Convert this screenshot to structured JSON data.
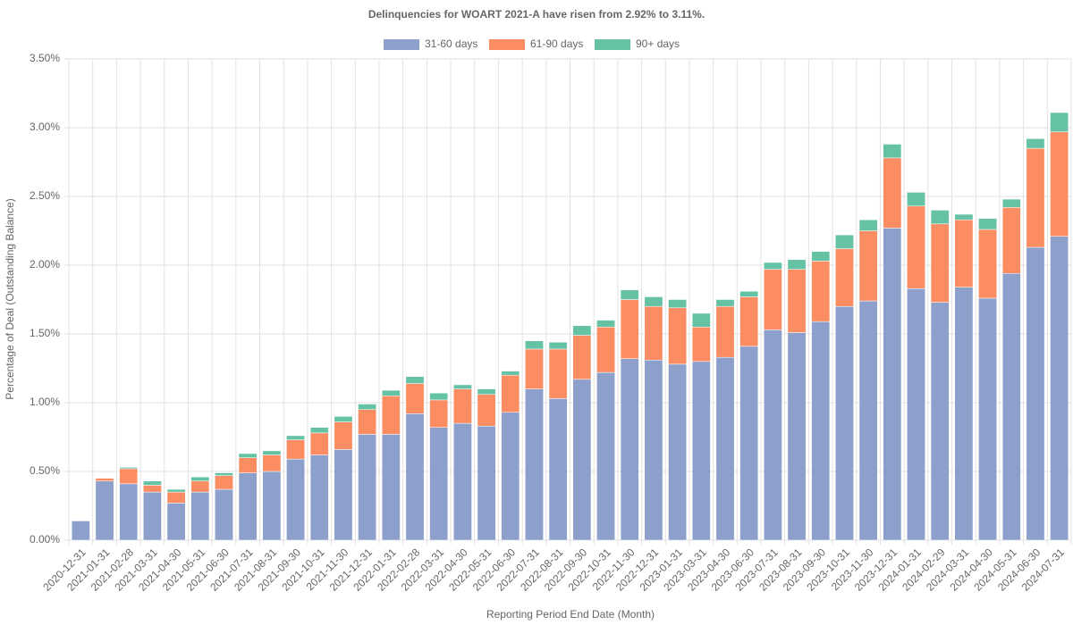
{
  "chart_data": {
    "type": "stacked_bar",
    "title": "Delinquencies for WOART 2021-A have risen from 2.92% to 3.11%.",
    "x_label": "Reporting Period End Date (Month)",
    "y_label": "Percentage of Deal (Outstanding Balance)",
    "categories": [
      "2020-12-31",
      "2021-01-31",
      "2021-02-28",
      "2021-03-31",
      "2021-04-30",
      "2021-05-31",
      "2021-06-30",
      "2021-07-31",
      "2021-08-31",
      "2021-09-30",
      "2021-10-31",
      "2021-11-30",
      "2021-12-31",
      "2022-01-31",
      "2022-02-28",
      "2022-03-31",
      "2022-04-30",
      "2022-05-31",
      "2022-06-30",
      "2022-07-31",
      "2022-08-31",
      "2022-09-30",
      "2022-10-31",
      "2022-11-30",
      "2022-12-31",
      "2023-01-31",
      "2023-03-31",
      "2023-04-30",
      "2023-06-30",
      "2023-07-31",
      "2023-08-31",
      "2023-09-30",
      "2023-10-31",
      "2023-11-30",
      "2023-12-31",
      "2024-01-31",
      "2024-02-29",
      "2024-03-31",
      "2024-04-30",
      "2024-05-31",
      "2024-06-30",
      "2024-07-31"
    ],
    "series": [
      {
        "name": "31-60 days",
        "color": "#8da0cb",
        "values": [
          0.14,
          0.43,
          0.41,
          0.35,
          0.27,
          0.35,
          0.37,
          0.49,
          0.5,
          0.59,
          0.62,
          0.66,
          0.77,
          0.77,
          0.92,
          0.82,
          0.85,
          0.83,
          0.93,
          1.1,
          1.03,
          1.17,
          1.22,
          1.32,
          1.31,
          1.28,
          1.3,
          1.33,
          1.41,
          1.53,
          1.51,
          1.59,
          1.7,
          1.74,
          2.27,
          1.83,
          1.73,
          1.84,
          1.76,
          1.94,
          2.13,
          2.21
        ]
      },
      {
        "name": "61-90 days",
        "color": "#fc8d62",
        "values": [
          0,
          0.02,
          0.11,
          0.05,
          0.08,
          0.08,
          0.1,
          0.11,
          0.12,
          0.14,
          0.16,
          0.2,
          0.18,
          0.28,
          0.22,
          0.2,
          0.25,
          0.23,
          0.27,
          0.29,
          0.36,
          0.32,
          0.33,
          0.43,
          0.39,
          0.41,
          0.25,
          0.37,
          0.36,
          0.44,
          0.46,
          0.44,
          0.42,
          0.51,
          0.51,
          0.6,
          0.57,
          0.49,
          0.5,
          0.48,
          0.72,
          0.76
        ]
      },
      {
        "name": "90+ days",
        "color": "#66c2a5",
        "values": [
          0,
          0,
          0.01,
          0.03,
          0.02,
          0.03,
          0.02,
          0.03,
          0.03,
          0.03,
          0.04,
          0.04,
          0.04,
          0.04,
          0.05,
          0.05,
          0.03,
          0.04,
          0.03,
          0.06,
          0.05,
          0.07,
          0.05,
          0.07,
          0.07,
          0.06,
          0.1,
          0.05,
          0.04,
          0.05,
          0.07,
          0.07,
          0.1,
          0.08,
          0.1,
          0.1,
          0.1,
          0.04,
          0.08,
          0.06,
          0.07,
          0.14
        ]
      }
    ],
    "ylim": [
      0,
      3.5
    ],
    "yticks": [
      {
        "value": 0,
        "label": "0.00%"
      },
      {
        "value": 0.5,
        "label": "0.50%"
      },
      {
        "value": 1,
        "label": "1.00%"
      },
      {
        "value": 1.5,
        "label": "1.50%"
      },
      {
        "value": 2,
        "label": "2.00%"
      },
      {
        "value": 2.5,
        "label": "2.50%"
      },
      {
        "value": 3,
        "label": "3.00%"
      },
      {
        "value": 3.5,
        "label": "3.50%"
      }
    ],
    "grid": true,
    "legend": "top"
  }
}
